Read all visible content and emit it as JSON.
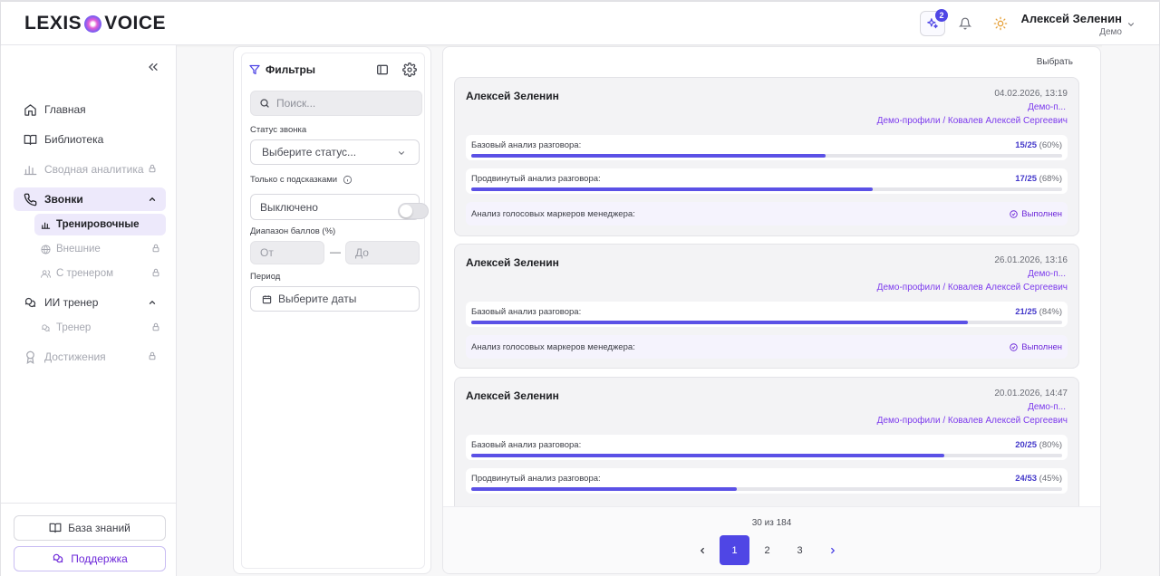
{
  "header": {
    "logo_left": "LEXIS",
    "logo_right": "VOICE",
    "ai_badge_count": "2",
    "user_name": "Алексей Зеленин",
    "user_role": "Демо"
  },
  "sidebar": {
    "items": [
      {
        "label": "Главная",
        "icon": "home-icon"
      },
      {
        "label": "Библиотека",
        "icon": "book-icon"
      },
      {
        "label": "Сводная аналитика",
        "icon": "bar-chart-icon",
        "locked": true
      },
      {
        "label": "Звонки",
        "icon": "phone-icon",
        "expanded": true
      },
      {
        "label": "ИИ тренер",
        "icon": "chat-icon",
        "expanded": true
      },
      {
        "label": "Достижения",
        "icon": "award-icon",
        "locked": true
      }
    ],
    "calls_sub": [
      {
        "label": "Тренировочные",
        "icon": "chart-icon",
        "active": true
      },
      {
        "label": "Внешние",
        "icon": "globe-icon",
        "locked": true
      },
      {
        "label": "С тренером",
        "icon": "users-icon",
        "locked": true
      }
    ],
    "coach_sub": [
      {
        "label": "Тренер",
        "icon": "chat-icon",
        "locked": true
      }
    ],
    "knowledge_base": "База знаний",
    "support": "Поддержка"
  },
  "filters": {
    "title": "Фильтры",
    "search_placeholder": "Поиск...",
    "call_status_label": "Статус звонка",
    "call_status_placeholder": "Выберите статус...",
    "hints_label": "Только с подсказками",
    "hints_value": "Выключено",
    "range_label": "Диапазон баллов (%)",
    "range_from": "От",
    "range_dash": "—",
    "range_to": "До",
    "period_label": "Период",
    "period_placeholder": "Выберите даты"
  },
  "list": {
    "choose_label": "Выбрать",
    "cards": [
      {
        "name": "Алексей Зеленин",
        "date": "04.02.2026, 13:19",
        "demo": "Демо-п...",
        "profile": "Демо-профили / Ковалев Алексей Сергеевич",
        "metrics": [
          {
            "label": "Базовый анализ разговора:",
            "score": "15/25",
            "percent": "(60%)",
            "value": 60
          },
          {
            "label": "Продвинутый анализ разговора:",
            "score": "17/25",
            "percent": "(68%)",
            "value": 68
          }
        ],
        "marker": {
          "label": "Анализ голосовых маркеров менеджера:",
          "status": "Выполнен"
        }
      },
      {
        "name": "Алексей Зеленин",
        "date": "26.01.2026, 13:16",
        "demo": "Демо-п...",
        "profile": "Демо-профили / Ковалев Алексей Сергеевич",
        "metrics": [
          {
            "label": "Базовый анализ разговора:",
            "score": "21/25",
            "percent": "(84%)",
            "value": 84
          }
        ],
        "marker": {
          "label": "Анализ голосовых маркеров менеджера:",
          "status": "Выполнен"
        }
      },
      {
        "name": "Алексей Зеленин",
        "date": "20.01.2026, 14:47",
        "demo": "Демо-п...",
        "profile": "Демо-профили / Ковалев Алексей Сергеевич",
        "metrics": [
          {
            "label": "Базовый анализ разговора:",
            "score": "20/25",
            "percent": "(80%)",
            "value": 80
          },
          {
            "label": "Продвинутый анализ разговора:",
            "score": "24/53",
            "percent": "(45%)",
            "value": 45
          }
        ]
      }
    ],
    "pagination": {
      "count_text": "30 из 184",
      "pages": [
        "1",
        "2",
        "3"
      ],
      "current": "1"
    }
  },
  "colors": {
    "accent": "#4f46e5",
    "purple_text": "#7c3aed",
    "active_bg": "#ede9fb",
    "progress": "#5b51e6"
  }
}
